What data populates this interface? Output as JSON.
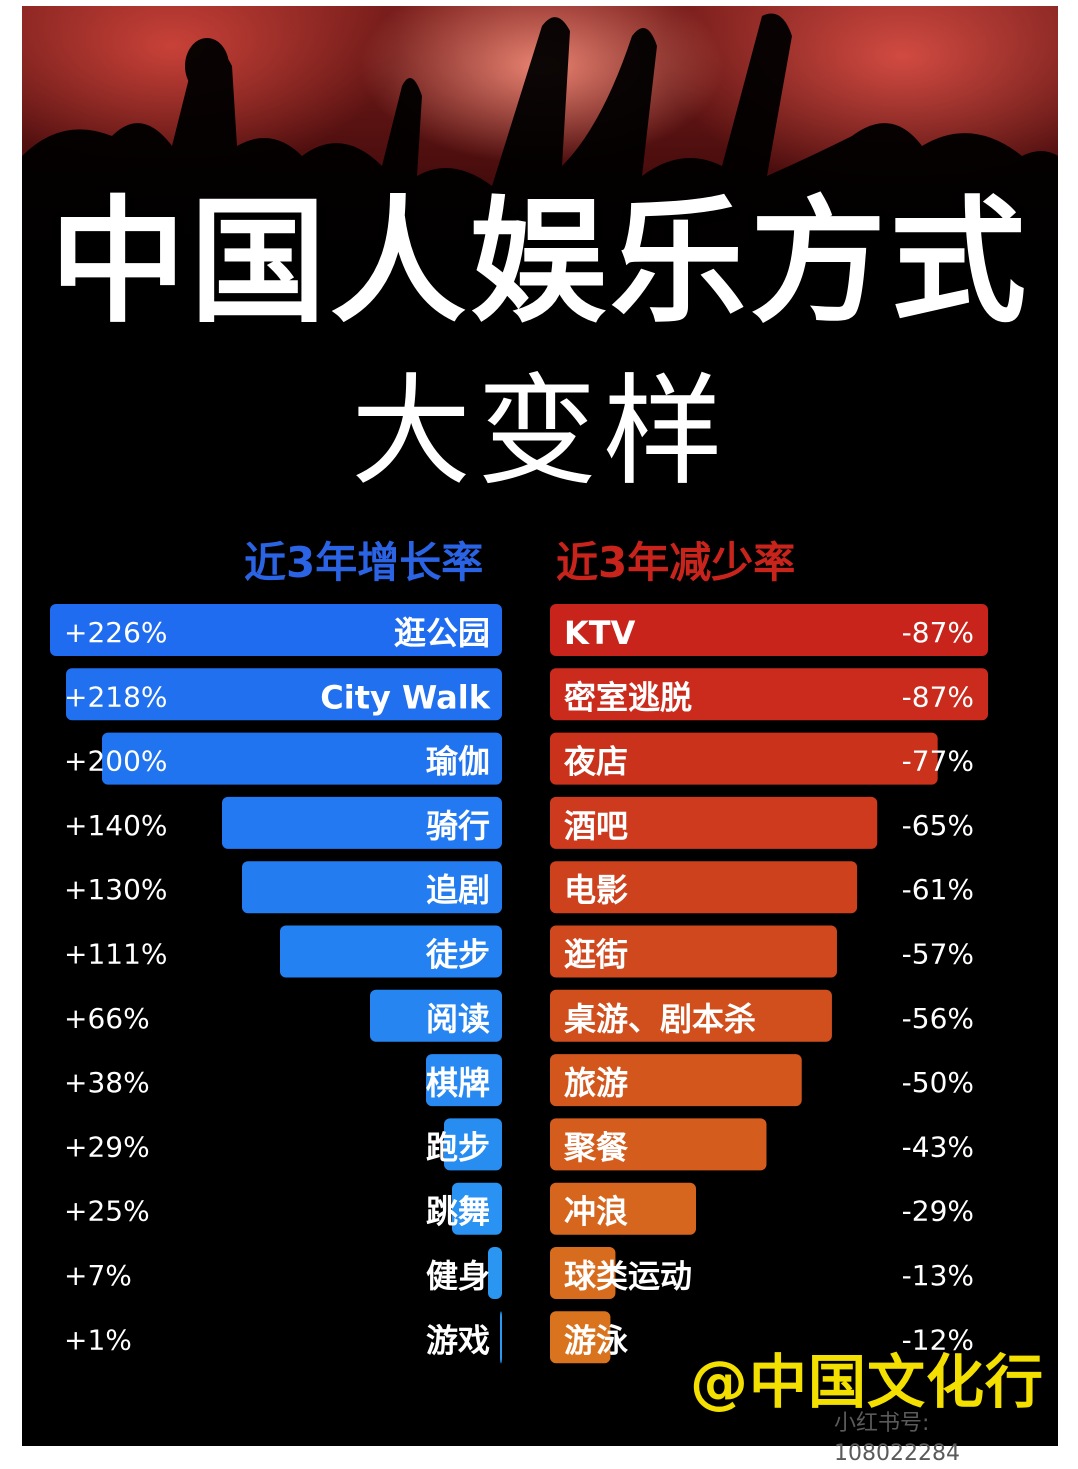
{
  "header": {
    "title": "中国人娱乐方式",
    "subtitle": "大变样"
  },
  "chart_data": {
    "type": "bar",
    "series": [
      {
        "name": "近3年增长率",
        "color": "#1f6cf0",
        "categories": [
          "逛公园",
          "City Walk",
          "瑜伽",
          "骑行",
          "追剧",
          "徒步",
          "阅读",
          "棋牌",
          "跑步",
          "跳舞",
          "健身",
          "游戏"
        ],
        "values": [
          226,
          218,
          200,
          140,
          130,
          111,
          66,
          38,
          29,
          25,
          7,
          1
        ],
        "labels": [
          "+226%",
          "+218%",
          "+200%",
          "+140%",
          "+130%",
          "+111%",
          "+66%",
          "+38%",
          "+29%",
          "+25%",
          "+7%",
          "+1%"
        ]
      },
      {
        "name": "近3年减少率",
        "color": "#c8241c",
        "categories": [
          "KTV",
          "密室逃脱",
          "夜店",
          "酒吧",
          "电影",
          "逛街",
          "桌游、剧本杀",
          "旅游",
          "聚餐",
          "冲浪",
          "球类运动",
          "游泳"
        ],
        "values": [
          -87,
          -87,
          -77,
          -65,
          -61,
          -57,
          -56,
          -50,
          -43,
          -29,
          -13,
          -12
        ],
        "labels": [
          "-87%",
          "-87%",
          "-77%",
          "-65%",
          "-61%",
          "-57%",
          "-56%",
          "-50%",
          "-43%",
          "-29%",
          "-13%",
          "-12%"
        ]
      }
    ]
  },
  "watermark": "@中国文化行",
  "account": "小红书号: 108022284"
}
